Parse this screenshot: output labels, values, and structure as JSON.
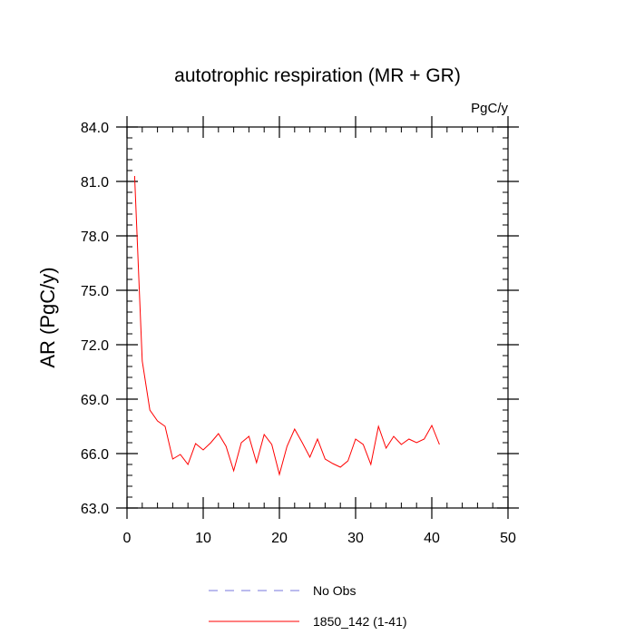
{
  "chart_data": {
    "type": "line",
    "title": "autotrophic respiration (MR + GR)",
    "units": "PgC/y",
    "xlabel": "",
    "ylabel": "AR  (PgC/y)",
    "xlim": [
      0,
      50
    ],
    "ylim": [
      63.0,
      84.0
    ],
    "x_ticks": [
      0,
      10,
      20,
      30,
      40,
      50
    ],
    "x_tick_labels": [
      "0",
      "10",
      "20",
      "30",
      "40",
      "50"
    ],
    "y_ticks": [
      63.0,
      66.0,
      69.0,
      72.0,
      75.0,
      78.0,
      81.0,
      84.0
    ],
    "y_tick_labels": [
      "63.0",
      "66.0",
      "69.0",
      "72.0",
      "75.0",
      "78.0",
      "81.0",
      "84.0"
    ],
    "grid": false,
    "legend_position": "bottom",
    "series": [
      {
        "name": "No Obs",
        "color": "#7777dd",
        "dash": "dashed",
        "x": [],
        "y": []
      },
      {
        "name": "1850_142 (1-41)",
        "color": "#ff0000",
        "dash": "solid",
        "x": [
          1,
          2,
          3,
          4,
          5,
          6,
          7,
          8,
          9,
          10,
          11,
          12,
          13,
          14,
          15,
          16,
          17,
          18,
          19,
          20,
          21,
          22,
          23,
          24,
          25,
          26,
          27,
          28,
          29,
          30,
          31,
          32,
          33,
          34,
          35,
          36,
          37,
          38,
          39,
          40,
          41
        ],
        "y": [
          81.3,
          71.1,
          68.4,
          67.8,
          67.5,
          65.7,
          65.95,
          65.4,
          66.55,
          66.2,
          66.6,
          67.1,
          66.4,
          65.05,
          66.6,
          66.95,
          65.5,
          67.05,
          66.5,
          64.85,
          66.4,
          67.35,
          66.6,
          65.8,
          66.8,
          65.7,
          65.45,
          65.25,
          65.6,
          66.8,
          66.5,
          65.4,
          67.5,
          66.3,
          66.95,
          66.5,
          66.8,
          66.6,
          66.8,
          67.55,
          66.5
        ]
      }
    ]
  }
}
